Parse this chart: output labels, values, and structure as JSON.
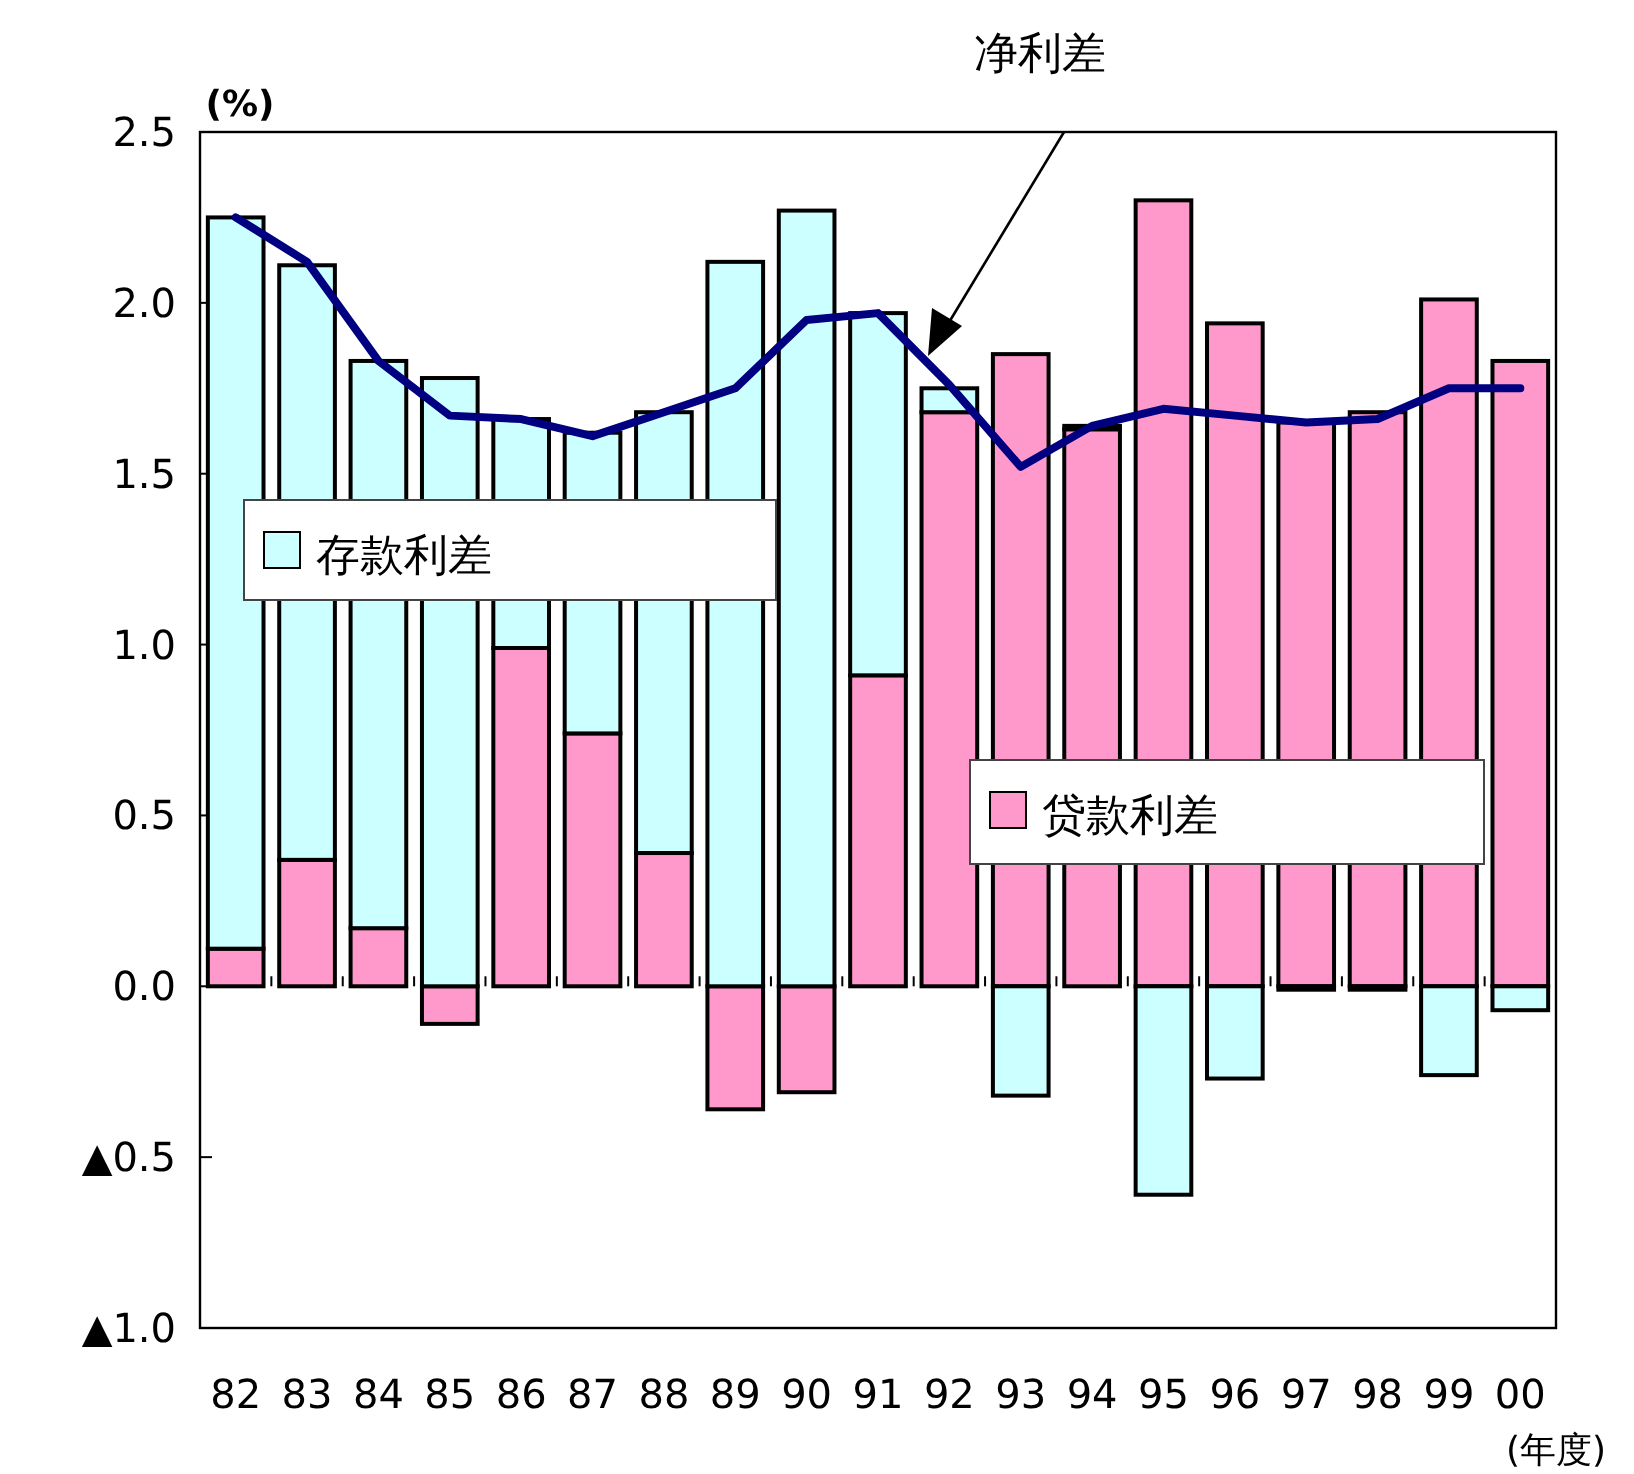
{
  "chart_data": {
    "type": "bar",
    "stacked": true,
    "legend": "center",
    "ylabel": "(%)",
    "xlabel": "(年度)",
    "categories": [
      "82",
      "83",
      "84",
      "85",
      "86",
      "87",
      "88",
      "89",
      "90",
      "91",
      "92",
      "93",
      "94",
      "95",
      "96",
      "97",
      "98",
      "99",
      "00"
    ],
    "series": [
      {
        "name": "贷款利差",
        "color": "#ff99cc",
        "values": [
          0.11,
          0.37,
          0.17,
          -0.11,
          0.99,
          0.74,
          0.39,
          -0.36,
          -0.31,
          0.91,
          1.68,
          1.85,
          1.63,
          2.3,
          1.94,
          1.65,
          1.68,
          2.01,
          1.83
        ]
      },
      {
        "name": "存款利差",
        "color": "#ccffff",
        "values": [
          2.14,
          1.74,
          1.66,
          1.78,
          0.67,
          0.88,
          1.29,
          2.12,
          2.27,
          1.06,
          0.07,
          -0.32,
          0.01,
          -0.61,
          -0.27,
          -0.01,
          -0.01,
          -0.26,
          -0.07
        ]
      },
      {
        "name": "净利差",
        "type": "line",
        "color": "#000080",
        "values": [
          2.25,
          2.12,
          1.83,
          1.67,
          1.66,
          1.61,
          1.68,
          1.75,
          1.95,
          1.97,
          1.76,
          1.52,
          1.64,
          1.69,
          1.67,
          1.65,
          1.66,
          1.75,
          1.75
        ]
      }
    ],
    "ylim": [
      -1.0,
      2.5
    ],
    "yticks": [
      {
        "value": -1.0,
        "label": "▲1.0"
      },
      {
        "value": -0.5,
        "label": "▲0.5"
      },
      {
        "value": 0,
        "label": "0.0"
      },
      0.5,
      {
        "value": 1,
        "label": "1.0"
      },
      1.5,
      {
        "value": 2,
        "label": "2.0"
      },
      2.5
    ]
  }
}
